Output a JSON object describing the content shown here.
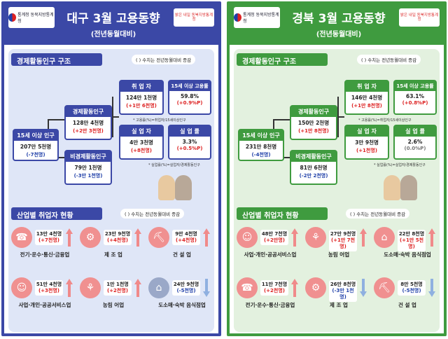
{
  "left": {
    "logo": "통계청 동북지방통계청",
    "logo2": "밝은 내일 동북지방통계청",
    "title": "대구 3월 고용동향",
    "subtitle": "(전년동월대비)",
    "section1": "경제활동인구 구조",
    "note1": "(   ) 수치는 전년동월대비 증감",
    "pop15": {
      "label": "15세 이상 인구",
      "value": "207만 5천명",
      "change": "(-7천명)"
    },
    "econ": {
      "label": "경제활동인구",
      "value": "128만 4천명",
      "change": "(+2만 3천명)"
    },
    "nonecon": {
      "label": "비경제활동인구",
      "value": "79만 1천명",
      "change": "(-3만 1천명)"
    },
    "employed": {
      "label": "취 업 자",
      "value": "124만 1천명",
      "change": "(+1만 6천명)"
    },
    "emprate": {
      "label": "15세 이상 고용률",
      "value": "59.8%",
      "change": "(+0.9%P)"
    },
    "unemployed": {
      "label": "실 업 자",
      "value": "4만 3천명",
      "change": "(+8천명)"
    },
    "unrate": {
      "label": "실 업 률",
      "value": "3.3%",
      "change": "(+0.5%P)"
    },
    "foot1": "* 고용률(%)=취업자/15세이상인구",
    "foot2": "* 실업률(%)=실업자/경제활동인구",
    "section2": "산업별 취업자 현황",
    "note2": "(   ) 수치는 전년동월대비 증감",
    "industries": [
      {
        "label": "전기·운수·통신·금융업",
        "v1": "13만 4천명",
        "v2": "(+7천명)",
        "dir": "up",
        "icon": "phone-icon"
      },
      {
        "label": "제 조 업",
        "v1": "23만 9천명",
        "v2": "(+4천명)",
        "dir": "up",
        "icon": "gear-icon"
      },
      {
        "label": "건 설 업",
        "v1": "9만 4천명",
        "v2": "(+4천명)",
        "dir": "up",
        "icon": "excavator-icon"
      },
      {
        "label": "사업·개인·공공서비스업",
        "v1": "51만 4천명",
        "v2": "(+3천명)",
        "dir": "up",
        "icon": "service-icon"
      },
      {
        "label": "농림 어업",
        "v1": "1만 1천명",
        "v2": "(+2천명)",
        "dir": "up",
        "icon": "tractor-icon"
      },
      {
        "label": "도소매·숙박 음식점업",
        "v1": "24만 9천명",
        "v2": "(-5천명)",
        "dir": "down",
        "icon": "store-icon"
      }
    ]
  },
  "right": {
    "logo": "통계청 동북지방통계청",
    "logo2": "밝은 내일 동북지방통계청",
    "title": "경북 3월 고용동향",
    "subtitle": "(전년동월대비)",
    "section1": "경제활동인구 구조",
    "note1": "(   ) 수치는 전년동월대비 증감",
    "pop15": {
      "label": "15세 이상 인구",
      "value": "231만 8천명",
      "change": "(-4천명)"
    },
    "econ": {
      "label": "경제활동인구",
      "value": "150만 2천명",
      "change": "(+1만 8천명)"
    },
    "nonecon": {
      "label": "비경제활동인구",
      "value": "81만 6천명",
      "change": "(-2만 2천명)"
    },
    "employed": {
      "label": "취 업 자",
      "value": "146만 4천명",
      "change": "(+1만 8천명)"
    },
    "emprate": {
      "label": "15세 이상 고용률",
      "value": "63.1%",
      "change": "(+0.8%P)"
    },
    "unemployed": {
      "label": "실 업 자",
      "value": "3만 9천명",
      "change": "(+1천명)"
    },
    "unrate": {
      "label": "실 업 률",
      "value": "2.6%",
      "change": "(0.0%P)"
    },
    "foot1": "* 고용률(%)=취업자/15세이상인구",
    "foot2": "* 실업률(%)=실업자/경제활동인구",
    "section2": "산업별 취업자 현황",
    "note2": "(   ) 수치는 전년동월대비 증감",
    "industries": [
      {
        "label": "사업·개인·공공서비스업",
        "v1": "48만 7천명",
        "v2": "(+2만명)",
        "dir": "up",
        "icon": "service-icon"
      },
      {
        "label": "농림 어업",
        "v1": "27만 9천명",
        "v2": "(+1만 7천명)",
        "dir": "up",
        "icon": "tractor-icon"
      },
      {
        "label": "도소매·숙박 음식점업",
        "v1": "22만 8천명",
        "v2": "(+1만 5천명)",
        "dir": "up",
        "icon": "store-icon"
      },
      {
        "label": "전기·운수·통신·금융업",
        "v1": "11만 7천명",
        "v2": "(+2천명)",
        "dir": "up",
        "icon": "phone-icon"
      },
      {
        "label": "제 조 업",
        "v1": "26만 8천명",
        "v2": "(-3만 1천명)",
        "dir": "down",
        "icon": "gear-icon"
      },
      {
        "label": "건 설 업",
        "v1": "8만 5천명",
        "v2": "(-5천명)",
        "dir": "down",
        "icon": "excavator-icon"
      }
    ]
  },
  "colors": {
    "up": "#f08a8a",
    "down": "#8fb0e0",
    "icon_left": "#f09090",
    "icon_right": "#f09090",
    "gray_icon": "#9aa8c8"
  }
}
